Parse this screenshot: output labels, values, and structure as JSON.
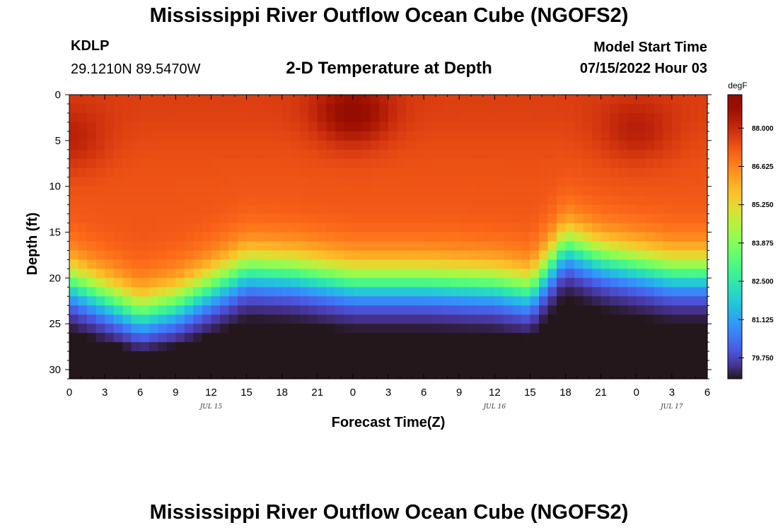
{
  "header": {
    "title": "Mississippi River Outflow Ocean Cube (NGOFS2)",
    "station_id": "KDLP",
    "coordinates": "29.1210N  89.5470W",
    "subtitle": "2-D Temperature at Depth",
    "model_start_label": "Model Start Time",
    "model_start_value": "07/15/2022 Hour 03"
  },
  "footer": {
    "title": "Mississippi River Outflow Ocean Cube (NGOFS2)"
  },
  "chart_data": {
    "type": "heatmap",
    "title": "2-D Temperature at Depth",
    "xlabel": "Forecast Time(Z)",
    "ylabel": "Depth (ft)",
    "x_tick_labels": [
      "0",
      "3",
      "6",
      "9",
      "12",
      "15",
      "18",
      "21",
      "0",
      "3",
      "6",
      "9",
      "12",
      "15",
      "18",
      "21",
      "0",
      "3",
      "6"
    ],
    "date_labels": [
      {
        "label": "JUL 15",
        "tick_index": 4
      },
      {
        "label": "JUL 16",
        "tick_index": 12
      },
      {
        "label": "JUL 17",
        "tick_index": 17
      }
    ],
    "y_ticks": [
      0,
      5,
      10,
      15,
      20,
      25,
      30
    ],
    "ylim": [
      0,
      31
    ],
    "y_inverted": true,
    "grid": false,
    "colorbar": {
      "unit": "degF",
      "min": 79.0,
      "max": 89.2,
      "tick_values": [
        88.0,
        86.625,
        85.25,
        83.875,
        82.5,
        81.125,
        79.75
      ],
      "tick_labels": [
        "88.000",
        "86.625",
        "85.250",
        "83.875",
        "82.500",
        "81.125",
        "79.750"
      ],
      "colormap": "turbo"
    },
    "thermocline_depth_ft": {
      "forecast_hour": [
        0,
        6,
        9,
        15,
        19,
        24,
        30,
        36,
        39,
        42,
        45,
        51
      ],
      "depth": [
        20.5,
        24.0,
        23.0,
        19.2,
        19.5,
        20.5,
        20.5,
        20.8,
        21.5,
        16.5,
        18.0,
        19.5
      ]
    },
    "surface_warm_cores": [
      {
        "forecast_hour": 0,
        "depth_ft": 5,
        "temperature": 88.3
      },
      {
        "forecast_hour": 24,
        "depth_ft": 2,
        "temperature": 88.9
      },
      {
        "forecast_hour": 48,
        "depth_ft": 4,
        "temperature": 88.3
      }
    ],
    "bottom_cold_cores": [
      {
        "forecast_hour": 16,
        "depth_ft": 31,
        "temperature": 79.3
      },
      {
        "forecast_hour": 44,
        "depth_ft": 31,
        "temperature": 79.3
      }
    ]
  }
}
